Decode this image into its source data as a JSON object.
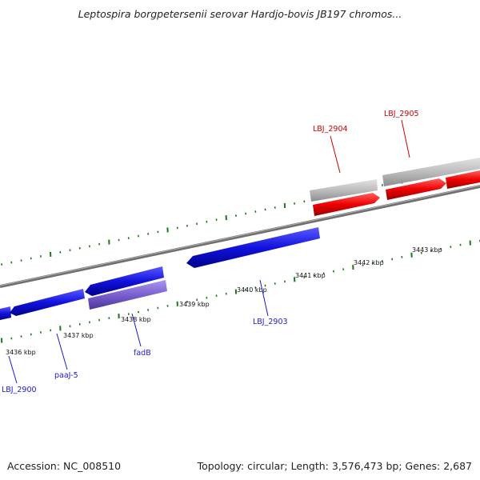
{
  "title": "Leptospira borgpetersenii serovar Hardjo-bovis JB197 chromos...",
  "footer": {
    "accession": "Accession: NC_008510",
    "summary": "Topology: circular; Length: 3,576,473 bp; Genes: 2,687"
  },
  "tick_labels": [
    "3436 kbp",
    "3437 kbp",
    "3438 kbp",
    "3439 kbp",
    "3440 kbp",
    "3441 kbp",
    "3442 kbp",
    "3443 kbp"
  ],
  "gene_labels": {
    "LBJ_2900": "LBJ_2900",
    "paaJ_5": "paaJ-5",
    "fadB": "fadB",
    "LBJ_2903": "LBJ_2903",
    "LBJ_2904": "LBJ_2904",
    "LBJ_2905": "LBJ_2905"
  },
  "colors": {
    "forward_gene": "#ee0000",
    "reverse_gene": "#1010dd",
    "reverse_gene_alt": "#7a5fd0",
    "forward_shadow": "#b8b8b8",
    "backbone": "#777777",
    "tick": "#1a7a1a",
    "reverse_label": "#1a1acc",
    "forward_label": "#cc0000"
  }
}
